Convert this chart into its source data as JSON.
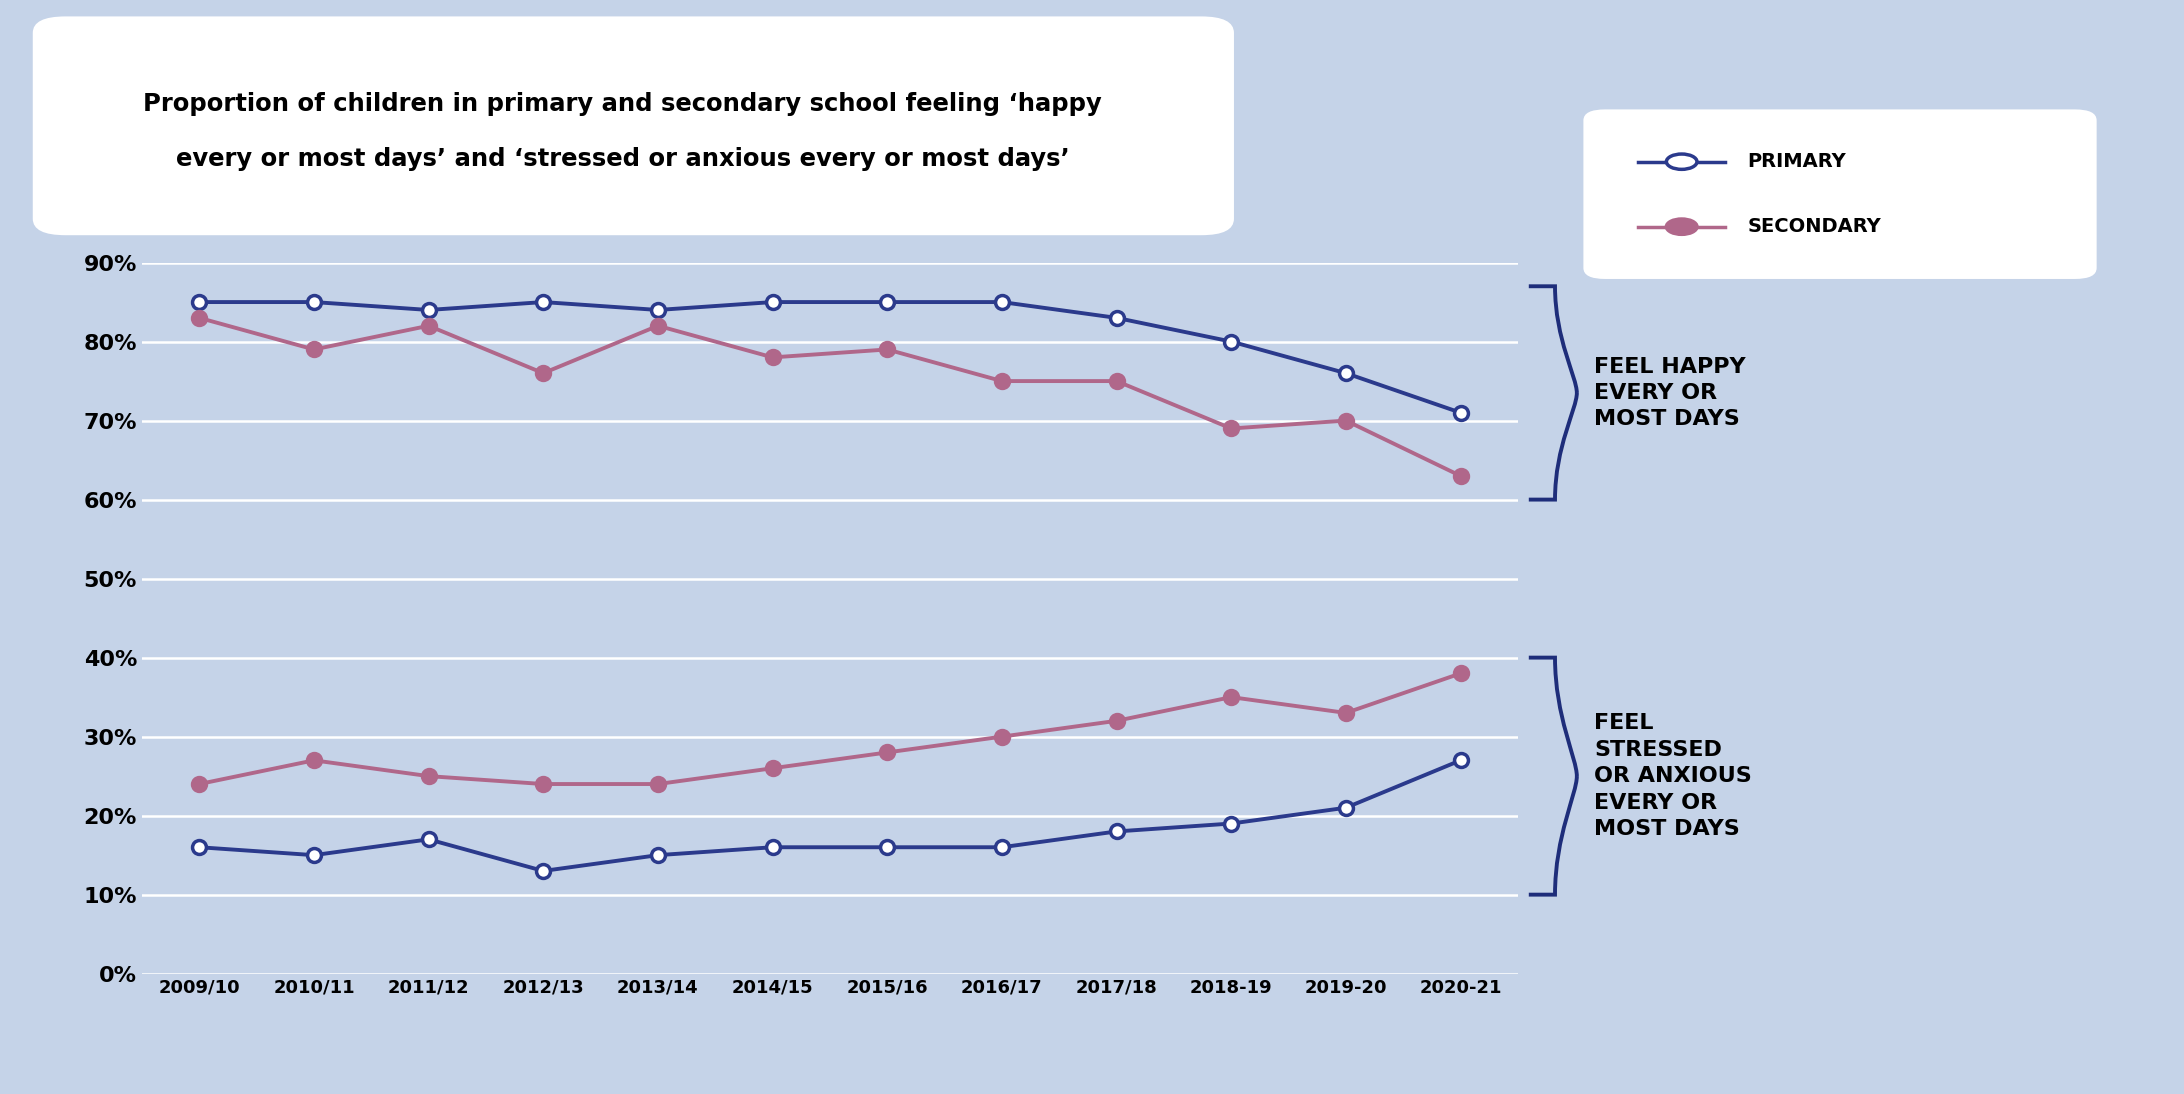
{
  "years": [
    "2009/10",
    "2010/11",
    "2011/12",
    "2012/13",
    "2013/14",
    "2014/15",
    "2015/16",
    "2016/17",
    "2017/18",
    "2018-19",
    "2019-20",
    "2020-21"
  ],
  "happy_primary": [
    85,
    85,
    84,
    85,
    84,
    85,
    85,
    85,
    83,
    80,
    76,
    71
  ],
  "happy_secondary": [
    83,
    79,
    82,
    76,
    82,
    78,
    79,
    75,
    75,
    69,
    70,
    63
  ],
  "stress_primary": [
    16,
    15,
    17,
    13,
    15,
    16,
    16,
    16,
    18,
    19,
    21,
    27
  ],
  "stress_secondary": [
    24,
    27,
    25,
    24,
    24,
    26,
    28,
    30,
    32,
    35,
    33,
    38
  ],
  "primary_color": "#2b3a8c",
  "secondary_color": "#b0678a",
  "background_color": "#c5d3e8",
  "title_box_color": "#ffffff",
  "title_line1": "Proportion of children in primary and secondary school feeling ‘happy",
  "title_line2": "every or most days’ and ‘stressed or anxious every or most days’",
  "legend_box_color": "#ffffff",
  "ylim": [
    0,
    90
  ],
  "yticks": [
    0,
    10,
    20,
    30,
    40,
    50,
    60,
    70,
    80,
    90
  ],
  "label_happy": "FEEL HAPPY\nEVERY OR\nMOST DAYS",
  "label_stress": "FEEL\nSTRESSED\nOR ANXIOUS\nEVERY OR\nMOST DAYS",
  "legend_primary": "PRIMARY",
  "legend_secondary": "SECONDARY"
}
